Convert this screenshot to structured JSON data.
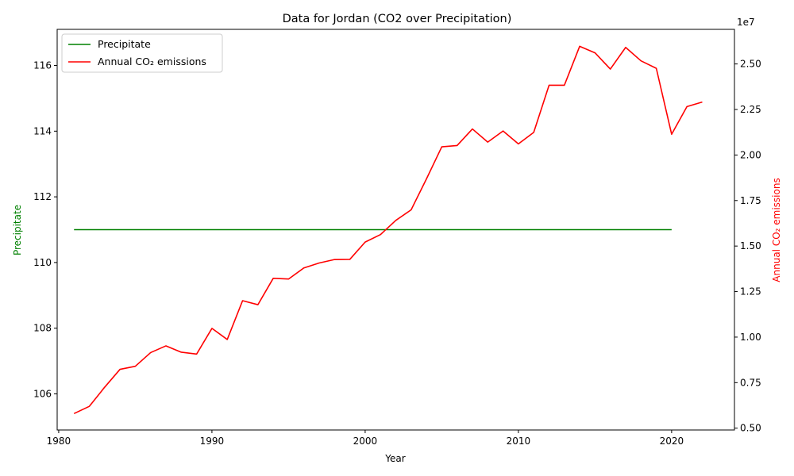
{
  "chart_data": {
    "type": "line",
    "title": "Data for Jordan (CO2 over Precipitation)",
    "xlabel": "Year",
    "ylabel_left": "Precipitate",
    "ylabel_right": "Annual CO₂ emissions",
    "right_axis_offset_text": "1e7",
    "xlim": [
      1979.9,
      2024.1
    ],
    "ylim_left": [
      104.9,
      117.1
    ],
    "ylim_right": [
      4900000,
      26900000
    ],
    "x_ticks": [
      1980,
      1990,
      2000,
      2010,
      2020
    ],
    "y_ticks_left": [
      106,
      108,
      110,
      112,
      114,
      116
    ],
    "y_ticks_right": [
      {
        "value": 5000000,
        "label": "0.50"
      },
      {
        "value": 7500000,
        "label": "0.75"
      },
      {
        "value": 10000000,
        "label": "1.00"
      },
      {
        "value": 12500000,
        "label": "1.25"
      },
      {
        "value": 15000000,
        "label": "1.50"
      },
      {
        "value": 17500000,
        "label": "1.75"
      },
      {
        "value": 20000000,
        "label": "2.00"
      },
      {
        "value": 22500000,
        "label": "2.25"
      },
      {
        "value": 25000000,
        "label": "2.50"
      }
    ],
    "legend_position": "upper-left",
    "grid": false,
    "series": [
      {
        "name": "Precipitate",
        "axis": "left",
        "color": "#008000",
        "x": [
          1981,
          1982,
          1983,
          1984,
          1985,
          1986,
          1987,
          1988,
          1989,
          1990,
          1991,
          1992,
          1993,
          1994,
          1995,
          1996,
          1997,
          1998,
          1999,
          2000,
          2001,
          2002,
          2003,
          2004,
          2005,
          2006,
          2007,
          2008,
          2009,
          2010,
          2011,
          2012,
          2013,
          2014,
          2015,
          2016,
          2017,
          2018,
          2019,
          2020
        ],
        "values": [
          111,
          111,
          111,
          111,
          111,
          111,
          111,
          111,
          111,
          111,
          111,
          111,
          111,
          111,
          111,
          111,
          111,
          111,
          111,
          111,
          111,
          111,
          111,
          111,
          111,
          111,
          111,
          111,
          111,
          111,
          111,
          111,
          111,
          111,
          111,
          111,
          111,
          111,
          111,
          111
        ]
      },
      {
        "name": "Annual CO₂ emissions",
        "axis": "right",
        "color": "#ff0000",
        "x": [
          1981,
          1982,
          1983,
          1984,
          1985,
          1986,
          1987,
          1988,
          1989,
          1990,
          1991,
          1992,
          1993,
          1994,
          1995,
          1996,
          1997,
          1998,
          1999,
          2000,
          2001,
          2002,
          2003,
          2004,
          2005,
          2006,
          2007,
          2008,
          2009,
          2010,
          2011,
          2012,
          2013,
          2014,
          2015,
          2016,
          2017,
          2018,
          2019,
          2020,
          2021,
          2022
        ],
        "values": [
          5800000,
          6200000,
          7250000,
          8230000,
          8400000,
          9150000,
          9520000,
          9170000,
          9070000,
          10480000,
          9870000,
          12000000,
          11780000,
          13230000,
          13190000,
          13800000,
          14070000,
          14260000,
          14270000,
          15220000,
          15630000,
          16410000,
          16990000,
          18690000,
          20450000,
          20520000,
          21430000,
          20710000,
          21320000,
          20610000,
          21240000,
          23830000,
          23830000,
          25970000,
          25610000,
          24720000,
          25910000,
          25170000,
          24760000,
          21140000,
          22660000,
          22910000
        ]
      }
    ]
  }
}
